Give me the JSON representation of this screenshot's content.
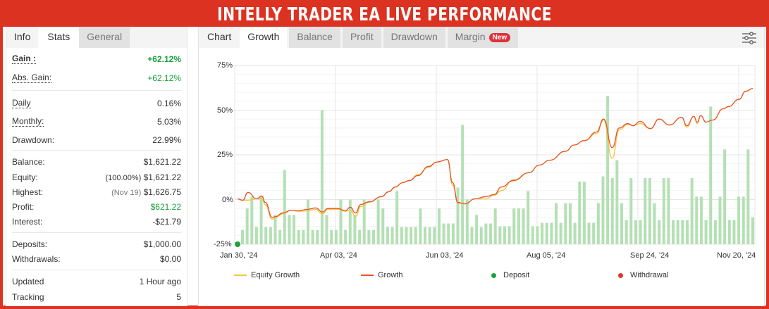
{
  "title": "INTELLY TRADER EA LIVE PERFORMANCE",
  "left_tabs": [
    "Info",
    "Stats",
    "General"
  ],
  "stats": {
    "gain": {
      "label": "Gain :",
      "value": "+62.12%"
    },
    "abs_gain": {
      "label": "Abs. Gain:",
      "value": "+62.12%"
    },
    "daily": {
      "label": "Daily",
      "value": "0.16%"
    },
    "monthly": {
      "label": "Monthly:",
      "value": "5.03%"
    },
    "drawdown": {
      "label": "Drawdown:",
      "value": "22.99%"
    },
    "balance": {
      "label": "Balance:",
      "value": "$1,621.22"
    },
    "equity": {
      "label": "Equity:",
      "note": "(100.00%)",
      "value": "$1,621.22"
    },
    "highest": {
      "label": "Highest:",
      "note": "(Nov 19)",
      "value": "$1,626.75"
    },
    "profit": {
      "label": "Profit:",
      "value": "$621.22"
    },
    "interest": {
      "label": "Interest:",
      "value": "-$21.79"
    },
    "deposits": {
      "label": "Deposits:",
      "value": "$1,000.00"
    },
    "withdrawals": {
      "label": "Withdrawals:",
      "value": "$0.00"
    },
    "updated": {
      "label": "Updated",
      "value": "1 Hour ago"
    },
    "tracking": {
      "label": "Tracking",
      "value": "5"
    }
  },
  "chart_tabs": [
    "Chart",
    "Growth",
    "Balance",
    "Profit",
    "Drawdown",
    "Margin"
  ],
  "new_badge": "New",
  "chart_data": {
    "type": "line",
    "y_ticks": [
      "75%",
      "50%",
      "25%",
      "0%",
      "-25%"
    ],
    "ylim": [
      -25,
      75
    ],
    "x_ticks": [
      "Jan 30, '24",
      "Apr 03, '24",
      "Jun 03, '24",
      "Aug 05, '24",
      "Sep 24, '24",
      "Nov 20, '24"
    ],
    "x_tick_days": [
      0,
      64,
      125,
      188,
      238,
      295
    ],
    "xlim_days": [
      0,
      297
    ],
    "legend": [
      "Equity Growth",
      "Growth",
      "Deposit",
      "Withdrawal"
    ],
    "colors": {
      "equity": "#f7c43c",
      "growth": "#e5532a",
      "bars": "#b4e0b4",
      "deposit": "#19a33a",
      "withdrawal": "#e8352c"
    },
    "growth": [
      [
        0,
        0.4
      ],
      [
        3,
        -0.4
      ],
      [
        6,
        4
      ],
      [
        11,
        0.4
      ],
      [
        14,
        2
      ],
      [
        16,
        -1.6
      ],
      [
        20,
        -10
      ],
      [
        22,
        -9.5
      ],
      [
        26,
        -7.5
      ],
      [
        31,
        -6
      ],
      [
        35,
        -6.3
      ],
      [
        40,
        -5.5
      ],
      [
        45,
        -4.7
      ],
      [
        49,
        -7
      ],
      [
        52,
        -5
      ],
      [
        58,
        -5
      ],
      [
        62,
        -6.3
      ],
      [
        65,
        -4.3
      ],
      [
        68,
        -7.5
      ],
      [
        71,
        -2.8
      ],
      [
        76,
        -1.2
      ],
      [
        83,
        1.6
      ],
      [
        87,
        4.3
      ],
      [
        91,
        7
      ],
      [
        95,
        9.4
      ],
      [
        99,
        10.6
      ],
      [
        104,
        13.4
      ],
      [
        110,
        18.5
      ],
      [
        115,
        21
      ],
      [
        121,
        22.4
      ],
      [
        124,
        9.4
      ],
      [
        127,
        -1.6
      ],
      [
        131,
        -2.4
      ],
      [
        137,
        0.4
      ],
      [
        143,
        1.6
      ],
      [
        148,
        2.8
      ],
      [
        152,
        7
      ],
      [
        159,
        10.6
      ],
      [
        168,
        15
      ],
      [
        174,
        19.3
      ],
      [
        180,
        22
      ],
      [
        189,
        27
      ],
      [
        194,
        30.5
      ],
      [
        200,
        33
      ],
      [
        207,
        37.8
      ],
      [
        211,
        45
      ],
      [
        216,
        29
      ],
      [
        220,
        40
      ],
      [
        225,
        42.5
      ],
      [
        228,
        41.3
      ],
      [
        232,
        43.7
      ],
      [
        238,
        39.7
      ],
      [
        243,
        45
      ],
      [
        249,
        41.7
      ],
      [
        256,
        46
      ],
      [
        259,
        41.3
      ],
      [
        263,
        46.5
      ],
      [
        265,
        43.3
      ],
      [
        267,
        47
      ],
      [
        270,
        43.3
      ],
      [
        274,
        44.5
      ],
      [
        280,
        50.8
      ],
      [
        283,
        52
      ],
      [
        289,
        56
      ],
      [
        293,
        60.6
      ],
      [
        297,
        62.1
      ]
    ],
    "equity": [
      [
        0,
        0.4
      ],
      [
        3,
        -0.4
      ],
      [
        6,
        -0.4
      ],
      [
        11,
        0.4
      ],
      [
        14,
        0.4
      ],
      [
        16,
        -3
      ],
      [
        20,
        -11
      ],
      [
        22,
        -10
      ],
      [
        26,
        -8
      ],
      [
        31,
        -6
      ],
      [
        35,
        -6.6
      ],
      [
        40,
        -6.4
      ],
      [
        45,
        -5.5
      ],
      [
        49,
        -8
      ],
      [
        52,
        -5.5
      ],
      [
        58,
        -5.5
      ],
      [
        62,
        -6.6
      ],
      [
        65,
        -6
      ],
      [
        68,
        -9.5
      ],
      [
        71,
        -4
      ],
      [
        76,
        -1.5
      ],
      [
        83,
        1.6
      ],
      [
        87,
        4.3
      ],
      [
        91,
        7
      ],
      [
        95,
        9.4
      ],
      [
        99,
        10.6
      ],
      [
        104,
        14
      ],
      [
        110,
        18
      ],
      [
        115,
        21
      ],
      [
        121,
        22.4
      ],
      [
        124,
        8
      ],
      [
        127,
        -2
      ],
      [
        131,
        -2.4
      ],
      [
        137,
        0.4
      ],
      [
        143,
        0.4
      ],
      [
        148,
        2.4
      ],
      [
        152,
        5
      ],
      [
        159,
        11
      ],
      [
        168,
        15
      ],
      [
        174,
        19.3
      ],
      [
        180,
        22
      ],
      [
        189,
        27
      ],
      [
        194,
        30.5
      ],
      [
        200,
        33
      ],
      [
        207,
        37
      ],
      [
        211,
        44.5
      ],
      [
        216,
        23
      ],
      [
        220,
        39
      ],
      [
        225,
        42
      ],
      [
        228,
        41.3
      ],
      [
        232,
        42.5
      ],
      [
        238,
        39.7
      ],
      [
        243,
        45
      ],
      [
        249,
        41.7
      ],
      [
        256,
        46
      ],
      [
        259,
        40.5
      ],
      [
        263,
        46.5
      ],
      [
        265,
        42.5
      ],
      [
        267,
        47
      ],
      [
        270,
        43.3
      ],
      [
        274,
        44.5
      ],
      [
        280,
        50.8
      ],
      [
        283,
        52
      ],
      [
        289,
        56
      ],
      [
        293,
        60.6
      ],
      [
        297,
        62.1
      ]
    ],
    "bars": [
      -17,
      -5,
      1.6,
      -15.4,
      1.6,
      -15.4,
      -15.4,
      -8.6,
      -17,
      16.5,
      -8.6,
      -8.6,
      -17,
      -17,
      0,
      -17,
      -17,
      50,
      -8.6,
      -17,
      -17,
      0,
      -17,
      0,
      -8.6,
      -17,
      0,
      -17,
      -17,
      0,
      -5,
      -15.4,
      -15.4,
      4.7,
      -15.4,
      -15.4,
      -15.4,
      -15.4,
      -5,
      -15.4,
      -15.4,
      -15.4,
      -5,
      -13.4,
      -13.4,
      -13.4,
      6.7,
      41.7,
      0,
      -15.4,
      -8.6,
      -15.4,
      -13.4,
      -13.4,
      -5,
      -15,
      -15,
      -15,
      -5,
      -5,
      -5,
      4.7,
      -15,
      -15,
      -13,
      -13,
      -13,
      -2,
      -13,
      -2,
      -2,
      -13,
      10,
      10,
      -13,
      -13,
      -2,
      13,
      58,
      12,
      22,
      -2,
      -11.5,
      12,
      -11.5,
      -11.5,
      12,
      12,
      -2,
      -11.5,
      12,
      12,
      -11.5,
      -11.5,
      -11.5,
      -11.5,
      12,
      1.6,
      1.6,
      -11.5,
      52,
      -11.5,
      1.6,
      28,
      -11.5,
      -11.5,
      1.6,
      1.6,
      28,
      -10
    ],
    "deposit_days": [
      0
    ]
  }
}
